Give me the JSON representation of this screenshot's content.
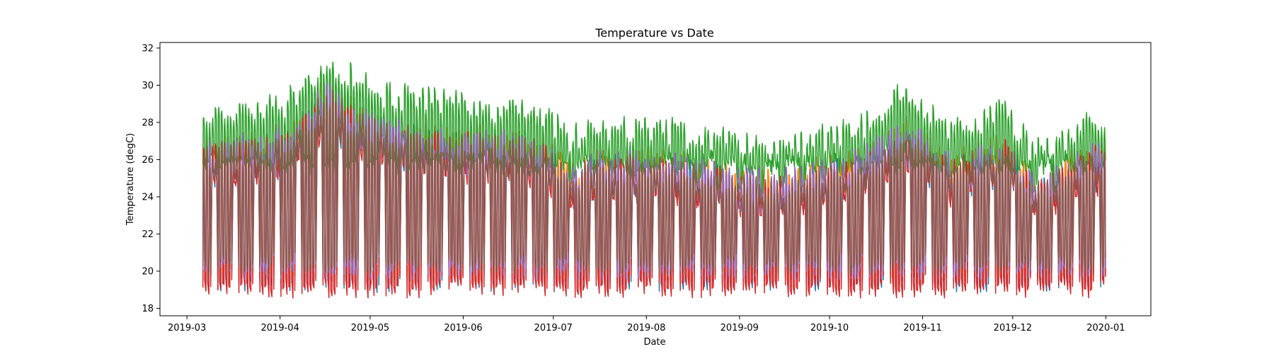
{
  "chart_data": {
    "type": "line",
    "title": "Temperature vs Date",
    "xlabel": "Date",
    "ylabel": "Temperature (degC)",
    "xlim": [
      "2019-02-20",
      "2020-01-16"
    ],
    "ylim": [
      17.6,
      32.3
    ],
    "x_ticks": [
      "2019-03",
      "2019-04",
      "2019-05",
      "2019-06",
      "2019-07",
      "2019-08",
      "2019-09",
      "2019-10",
      "2019-11",
      "2019-12",
      "2020-01"
    ],
    "y_ticks": [
      18,
      20,
      22,
      24,
      26,
      28,
      30,
      32
    ],
    "grid": false,
    "legend": "none",
    "date_range": [
      "2019-03-06",
      "2019-12-31"
    ],
    "series": [
      {
        "color": "#1f77b4",
        "day_high": 26.2,
        "night_low": 19.3,
        "weekend_low": 24.8
      },
      {
        "color": "#ff7f0e",
        "day_high": 26.6,
        "night_low": 19.8,
        "weekend_low": 25.0
      },
      {
        "color": "#2ca02c",
        "day_high": 28.3,
        "night_low": 25.6,
        "weekend_low": 25.8
      },
      {
        "color": "#d62728",
        "day_high": 26.0,
        "night_low": 19.0,
        "weekend_low": 24.5
      },
      {
        "color": "#9467bd",
        "day_high": 26.4,
        "night_low": 20.0,
        "weekend_low": 25.0
      },
      {
        "color": "#8c564b",
        "day_high": 26.1,
        "night_low": 20.2,
        "weekend_low": 24.9
      }
    ],
    "seasonal_offsets": [
      {
        "date": "2019-03-06",
        "offset": 0.0
      },
      {
        "date": "2019-04-01",
        "offset": 0.5
      },
      {
        "date": "2019-04-16",
        "offset": 3.0
      },
      {
        "date": "2019-04-25",
        "offset": 2.0
      },
      {
        "date": "2019-05-05",
        "offset": 1.2
      },
      {
        "date": "2019-05-20",
        "offset": 0.8
      },
      {
        "date": "2019-06-01",
        "offset": 0.6
      },
      {
        "date": "2019-06-25",
        "offset": 0.3
      },
      {
        "date": "2019-07-05",
        "offset": -1.2
      },
      {
        "date": "2019-07-20",
        "offset": -0.6
      },
      {
        "date": "2019-08-10",
        "offset": -0.8
      },
      {
        "date": "2019-09-10",
        "offset": -1.8
      },
      {
        "date": "2019-10-10",
        "offset": -0.6
      },
      {
        "date": "2019-10-25",
        "offset": 1.2
      },
      {
        "date": "2019-11-10",
        "offset": -0.8
      },
      {
        "date": "2019-11-28",
        "offset": 0.2
      },
      {
        "date": "2019-12-08",
        "offset": -2.0
      },
      {
        "date": "2019-12-25",
        "offset": -0.4
      },
      {
        "date": "2019-12-31",
        "offset": 0.0
      }
    ]
  }
}
